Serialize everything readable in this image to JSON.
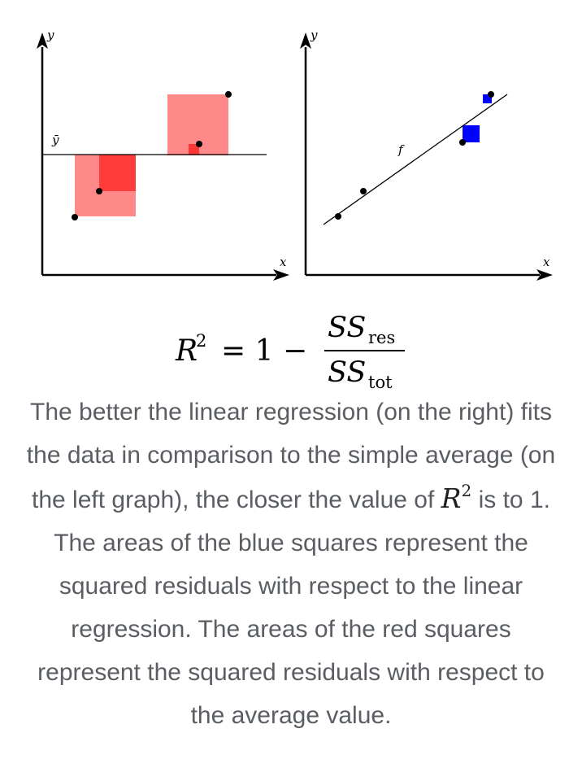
{
  "diagram": {
    "left_panel": {
      "y_axis_label": "y",
      "x_axis_label": "x",
      "mean_label": "ȳ"
    },
    "right_panel": {
      "y_axis_label": "y",
      "x_axis_label": "x",
      "line_label": "f"
    },
    "formula": {
      "lhs_base": "R",
      "lhs_exp": "2",
      "equals_one_minus": "= 1 −",
      "numerator_base": "SS",
      "numerator_sub": "res",
      "denominator_base": "SS",
      "denominator_sub": "tot",
      "colors": {
        "numerator": "#0000cc",
        "denominator": "#cc0000",
        "red_square": "#ff6b6b",
        "red_square_small": "#ff2a2a",
        "blue_square": "#0000ff"
      }
    }
  },
  "caption": {
    "part1": "The better the linear regression (on the right) fits the data in comparison to the simple average (on the left graph), the closer the value of",
    "r2_base": "R",
    "r2_exp": "2",
    "part2": "is to 1. The areas of the blue squares represent the squared residuals with respect to the linear regression. The areas of the red squares represent the squared residuals with respect to the average value."
  }
}
